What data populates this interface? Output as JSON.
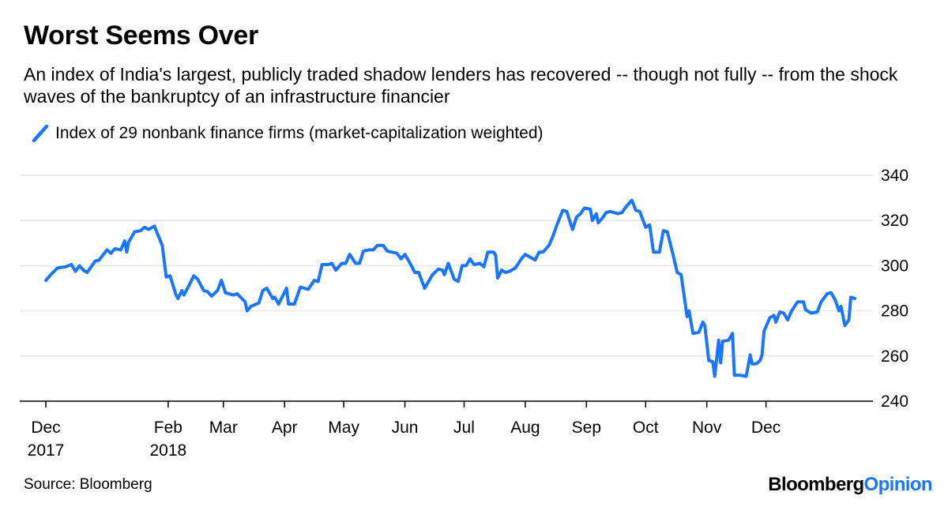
{
  "header": {
    "title": "Worst Seems Over",
    "subtitle": "An index of India's largest, publicly traded shadow lenders has recovered -- though not fully -- from the shock waves of the bankruptcy of an infrastructure financier"
  },
  "footer": {
    "source": "Source: Bloomberg",
    "brand_part1": "Bloomberg",
    "brand_part2": "Opinion"
  },
  "colors": {
    "series": "#1a75ff",
    "grid": "#e6e6e6",
    "axis": "#000000",
    "brand_accent": "#1a75ff"
  },
  "chart_data": {
    "type": "line",
    "title": "Worst Seems Over",
    "xlabel": "",
    "ylabel": "",
    "ylim": [
      240,
      340
    ],
    "y_ticks": [
      240,
      260,
      280,
      300,
      320,
      340
    ],
    "y_axis_side": "right",
    "grid": "horizontal",
    "legend_position": "top-left",
    "x_tick_labels": [
      {
        "date": "2017-12-01",
        "line1": "Dec",
        "line2": "2017"
      },
      {
        "date": "2018-02-01",
        "line1": "Feb",
        "line2": "2018"
      },
      {
        "date": "2018-03-01",
        "line1": "Mar",
        "line2": ""
      },
      {
        "date": "2018-04-01",
        "line1": "Apr",
        "line2": ""
      },
      {
        "date": "2018-05-01",
        "line1": "May",
        "line2": ""
      },
      {
        "date": "2018-06-01",
        "line1": "Jun",
        "line2": ""
      },
      {
        "date": "2018-07-01",
        "line1": "Jul",
        "line2": ""
      },
      {
        "date": "2018-08-01",
        "line1": "Aug",
        "line2": ""
      },
      {
        "date": "2018-09-01",
        "line1": "Sep",
        "line2": ""
      },
      {
        "date": "2018-10-01",
        "line1": "Oct",
        "line2": ""
      },
      {
        "date": "2018-11-01",
        "line1": "Nov",
        "line2": ""
      },
      {
        "date": "2018-12-01",
        "line1": "Dec",
        "line2": ""
      }
    ],
    "series": [
      {
        "name": "Index of 29 nonbank finance firms (market-capitalization weighted)",
        "color": "#1a75ff",
        "points": [
          [
            "2017-12-01",
            293.5
          ],
          [
            "2017-12-04",
            296.5
          ],
          [
            "2017-12-07",
            299
          ],
          [
            "2017-12-11",
            299.5
          ],
          [
            "2017-12-14",
            300.5
          ],
          [
            "2017-12-16",
            297.5
          ],
          [
            "2017-12-18",
            300
          ],
          [
            "2017-12-20",
            298
          ],
          [
            "2017-12-22",
            297
          ],
          [
            "2017-12-26",
            302
          ],
          [
            "2017-12-28",
            302.5
          ],
          [
            "2018-01-01",
            307
          ],
          [
            "2018-01-03",
            305.5
          ],
          [
            "2018-01-05",
            307.5
          ],
          [
            "2018-01-08",
            307
          ],
          [
            "2018-01-10",
            311
          ],
          [
            "2018-01-11",
            306
          ],
          [
            "2018-01-12",
            310.5
          ],
          [
            "2018-01-15",
            315
          ],
          [
            "2018-01-18",
            315.5
          ],
          [
            "2018-01-20",
            317
          ],
          [
            "2018-01-22",
            316
          ],
          [
            "2018-01-25",
            317.5
          ],
          [
            "2018-01-29",
            309
          ],
          [
            "2018-01-31",
            295
          ],
          [
            "2018-02-02",
            295.5
          ],
          [
            "2018-02-05",
            287
          ],
          [
            "2018-02-06",
            285.5
          ],
          [
            "2018-02-08",
            289
          ],
          [
            "2018-02-09",
            287
          ],
          [
            "2018-02-12",
            292
          ],
          [
            "2018-02-14",
            295.5
          ],
          [
            "2018-02-16",
            294
          ],
          [
            "2018-02-19",
            289
          ],
          [
            "2018-02-21",
            288.5
          ],
          [
            "2018-02-23",
            286.5
          ],
          [
            "2018-02-26",
            289
          ],
          [
            "2018-02-28",
            293.5
          ],
          [
            "2018-03-02",
            288
          ],
          [
            "2018-03-06",
            287
          ],
          [
            "2018-03-08",
            287.5
          ],
          [
            "2018-03-12",
            284
          ],
          [
            "2018-03-13",
            280
          ],
          [
            "2018-03-15",
            282
          ],
          [
            "2018-03-19",
            283.5
          ],
          [
            "2018-03-21",
            289
          ],
          [
            "2018-03-23",
            290
          ],
          [
            "2018-03-26",
            285.5
          ],
          [
            "2018-03-27",
            286
          ],
          [
            "2018-03-29",
            283
          ],
          [
            "2018-04-02",
            290
          ],
          [
            "2018-04-03",
            283
          ],
          [
            "2018-04-06",
            283
          ],
          [
            "2018-04-09",
            290.5
          ],
          [
            "2018-04-11",
            290
          ],
          [
            "2018-04-13",
            289.5
          ],
          [
            "2018-04-16",
            293.5
          ],
          [
            "2018-04-18",
            293
          ],
          [
            "2018-04-20",
            300.5
          ],
          [
            "2018-04-23",
            300.5
          ],
          [
            "2018-04-25",
            301
          ],
          [
            "2018-04-27",
            298
          ],
          [
            "2018-04-30",
            301
          ],
          [
            "2018-05-02",
            301
          ],
          [
            "2018-05-04",
            305
          ],
          [
            "2018-05-07",
            301
          ],
          [
            "2018-05-09",
            301
          ],
          [
            "2018-05-11",
            306.5
          ],
          [
            "2018-05-14",
            307
          ],
          [
            "2018-05-16",
            307
          ],
          [
            "2018-05-18",
            309
          ],
          [
            "2018-05-21",
            309
          ],
          [
            "2018-05-23",
            306.5
          ],
          [
            "2018-05-25",
            306
          ],
          [
            "2018-05-28",
            305.5
          ],
          [
            "2018-05-30",
            303
          ],
          [
            "2018-06-01",
            305
          ],
          [
            "2018-06-04",
            300.5
          ],
          [
            "2018-06-06",
            297
          ],
          [
            "2018-06-08",
            297
          ],
          [
            "2018-06-11",
            290
          ],
          [
            "2018-06-13",
            293
          ],
          [
            "2018-06-15",
            296
          ],
          [
            "2018-06-18",
            298.5
          ],
          [
            "2018-06-20",
            298
          ],
          [
            "2018-06-21",
            296
          ],
          [
            "2018-06-23",
            301
          ],
          [
            "2018-06-26",
            294
          ],
          [
            "2018-06-28",
            293
          ],
          [
            "2018-06-30",
            300
          ],
          [
            "2018-07-02",
            300
          ],
          [
            "2018-07-04",
            303
          ],
          [
            "2018-07-06",
            300.5
          ],
          [
            "2018-07-09",
            301
          ],
          [
            "2018-07-11",
            299.5
          ],
          [
            "2018-07-13",
            306
          ],
          [
            "2018-07-16",
            306
          ],
          [
            "2018-07-17",
            304.5
          ],
          [
            "2018-07-18",
            294.5
          ],
          [
            "2018-07-20",
            298
          ],
          [
            "2018-07-22",
            297
          ],
          [
            "2018-07-24",
            297.5
          ],
          [
            "2018-07-27",
            299
          ],
          [
            "2018-07-30",
            303
          ],
          [
            "2018-08-01",
            305
          ],
          [
            "2018-08-03",
            304
          ],
          [
            "2018-08-06",
            302.5
          ],
          [
            "2018-08-08",
            306
          ],
          [
            "2018-08-10",
            306
          ],
          [
            "2018-08-13",
            309
          ],
          [
            "2018-08-15",
            313
          ],
          [
            "2018-08-17",
            318
          ],
          [
            "2018-08-20",
            324.5
          ],
          [
            "2018-08-22",
            324
          ],
          [
            "2018-08-24",
            318.5
          ],
          [
            "2018-08-25",
            316
          ],
          [
            "2018-08-27",
            321.5
          ],
          [
            "2018-08-29",
            323
          ],
          [
            "2018-08-31",
            325.5
          ],
          [
            "2018-09-03",
            325
          ],
          [
            "2018-09-04",
            320
          ],
          [
            "2018-09-06",
            323
          ],
          [
            "2018-09-07",
            319
          ],
          [
            "2018-09-09",
            321
          ],
          [
            "2018-09-11",
            323.5
          ],
          [
            "2018-09-13",
            324
          ],
          [
            "2018-09-17",
            323
          ],
          [
            "2018-09-19",
            323.5
          ],
          [
            "2018-09-21",
            326
          ],
          [
            "2018-09-24",
            329
          ],
          [
            "2018-09-26",
            324.5
          ],
          [
            "2018-09-28",
            324
          ],
          [
            "2018-10-01",
            317
          ],
          [
            "2018-10-03",
            318
          ],
          [
            "2018-10-05",
            306
          ],
          [
            "2018-10-08",
            306
          ],
          [
            "2018-10-10",
            315.5
          ],
          [
            "2018-10-12",
            315
          ],
          [
            "2018-10-15",
            304.5
          ],
          [
            "2018-10-17",
            297
          ],
          [
            "2018-10-19",
            296
          ],
          [
            "2018-10-22",
            277.5
          ],
          [
            "2018-10-23",
            280
          ],
          [
            "2018-10-25",
            270
          ],
          [
            "2018-10-28",
            270.5
          ],
          [
            "2018-10-30",
            275
          ],
          [
            "2018-10-31",
            273.5
          ],
          [
            "2018-11-02",
            258
          ],
          [
            "2018-11-04",
            257.5
          ],
          [
            "2018-11-05",
            251
          ],
          [
            "2018-11-07",
            267
          ],
          [
            "2018-11-08",
            257
          ],
          [
            "2018-11-09",
            266.5
          ],
          [
            "2018-11-12",
            267
          ],
          [
            "2018-11-14",
            270
          ],
          [
            "2018-11-15",
            251.5
          ],
          [
            "2018-11-18",
            251.5
          ],
          [
            "2018-11-21",
            251
          ],
          [
            "2018-11-23",
            260.5
          ],
          [
            "2018-11-24",
            256.5
          ],
          [
            "2018-11-26",
            256.5
          ],
          [
            "2018-11-28",
            258
          ],
          [
            "2018-11-29",
            260.5
          ],
          [
            "2018-11-30",
            271
          ],
          [
            "2018-12-03",
            277
          ],
          [
            "2018-12-05",
            278
          ],
          [
            "2018-12-06",
            275
          ],
          [
            "2018-12-08",
            279.5
          ],
          [
            "2018-12-10",
            279
          ],
          [
            "2018-12-12",
            276
          ],
          [
            "2018-12-14",
            280
          ],
          [
            "2018-12-17",
            284
          ],
          [
            "2018-12-20",
            284
          ],
          [
            "2018-12-21",
            280.5
          ],
          [
            "2018-12-24",
            279
          ],
          [
            "2018-12-27",
            279.5
          ],
          [
            "2018-12-29",
            284
          ],
          [
            "2019-01-01",
            287.5
          ],
          [
            "2019-01-03",
            288
          ],
          [
            "2019-01-05",
            285
          ],
          [
            "2019-01-07",
            280
          ],
          [
            "2019-01-08",
            282
          ],
          [
            "2019-01-10",
            273.5
          ],
          [
            "2019-01-12",
            276
          ],
          [
            "2019-01-13",
            286
          ],
          [
            "2019-01-15",
            285.5
          ]
        ]
      }
    ]
  }
}
